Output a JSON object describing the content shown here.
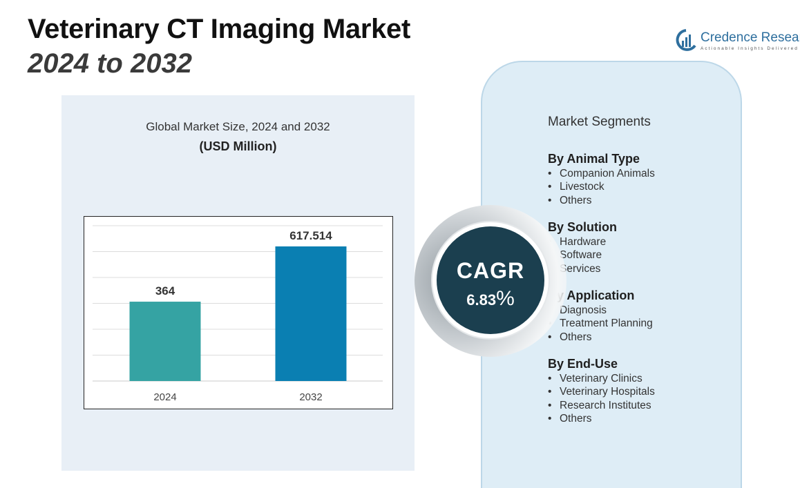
{
  "header": {
    "title": "Veterinary CT Imaging Market",
    "subtitle": "2024 to 2032"
  },
  "logo": {
    "name": "Credence Research",
    "tagline": "Actionable Insights Delivered"
  },
  "chart_data": {
    "type": "bar",
    "title": "Global Market Size, 2024 and 2032",
    "unit_label": "(USD Million)",
    "categories": [
      "2024",
      "2032"
    ],
    "values": [
      364,
      617.514
    ],
    "value_labels": [
      "364",
      "617.514"
    ],
    "colors": [
      "#35a3a3",
      "#0a7fb2"
    ],
    "ylim": [
      0,
      600
    ],
    "grid": true,
    "xlabel": "",
    "ylabel": ""
  },
  "cagr": {
    "label": "CAGR",
    "value": "6.83",
    "suffix": "%"
  },
  "segments": {
    "heading": "Market Segments",
    "groups": [
      {
        "title": "By Animal Type",
        "items": [
          "Companion Animals",
          "Livestock",
          "Others"
        ]
      },
      {
        "title": "By Solution",
        "items": [
          "Hardware",
          "Software",
          "Services"
        ]
      },
      {
        "title": "By Application",
        "items": [
          "Diagnosis",
          "Treatment Planning",
          "Others"
        ]
      },
      {
        "title": "By End-Use",
        "items": [
          "Veterinary Clinics",
          "Veterinary Hospitals",
          "Research Institutes",
          "Others"
        ]
      }
    ]
  }
}
